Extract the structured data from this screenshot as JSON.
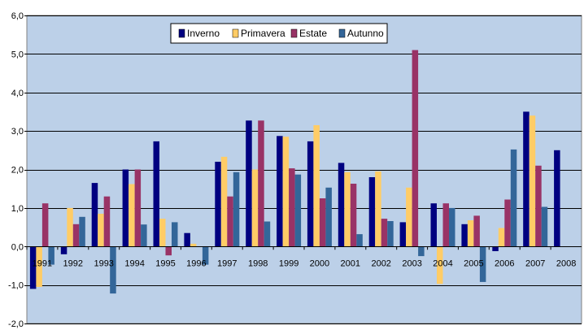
{
  "chart_data": {
    "type": "bar",
    "categories": [
      "1991",
      "1992",
      "1993",
      "1994",
      "1995",
      "1996",
      "1997",
      "1998",
      "1999",
      "2000",
      "2001",
      "2002",
      "2003",
      "2004",
      "2005",
      "2006",
      "2007",
      "2008"
    ],
    "series": [
      {
        "name": "Inverno",
        "color": "#000080",
        "values": [
          -1.1,
          -0.2,
          1.65,
          2.0,
          2.73,
          0.35,
          2.2,
          3.27,
          2.87,
          2.73,
          2.17,
          1.8,
          0.63,
          1.12,
          0.58,
          -0.12,
          3.5,
          2.5
        ]
      },
      {
        "name": "Primavera",
        "color": "#FFCC66",
        "values": [
          -1.05,
          1.0,
          0.85,
          1.62,
          0.72,
          0.07,
          2.33,
          2.0,
          2.85,
          3.15,
          1.93,
          1.95,
          1.53,
          -0.97,
          0.68,
          0.48,
          3.4,
          null
        ]
      },
      {
        "name": "Estate",
        "color": "#993366",
        "values": [
          1.12,
          0.58,
          1.3,
          2.0,
          -0.23,
          0.0,
          1.3,
          3.27,
          2.03,
          1.25,
          1.63,
          0.72,
          5.1,
          1.12,
          0.8,
          1.22,
          2.1,
          null
        ]
      },
      {
        "name": "Autunno",
        "color": "#336699",
        "values": [
          -0.47,
          0.77,
          -1.22,
          0.57,
          0.63,
          -0.47,
          1.93,
          0.65,
          1.87,
          1.53,
          0.32,
          0.66,
          -0.25,
          1.0,
          -0.92,
          2.52,
          1.03,
          null
        ]
      }
    ],
    "ylim": [
      -2.0,
      6.0
    ],
    "yticks": [
      "-2,0",
      "-1,0",
      "0,0",
      "1,0",
      "2,0",
      "3,0",
      "4,0",
      "5,0",
      "6,0"
    ],
    "ytick_values": [
      -2,
      -1,
      0,
      1,
      2,
      3,
      4,
      5,
      6
    ],
    "grid": true,
    "legend_position": "top-center",
    "plot_background": "#BCD0E8"
  }
}
